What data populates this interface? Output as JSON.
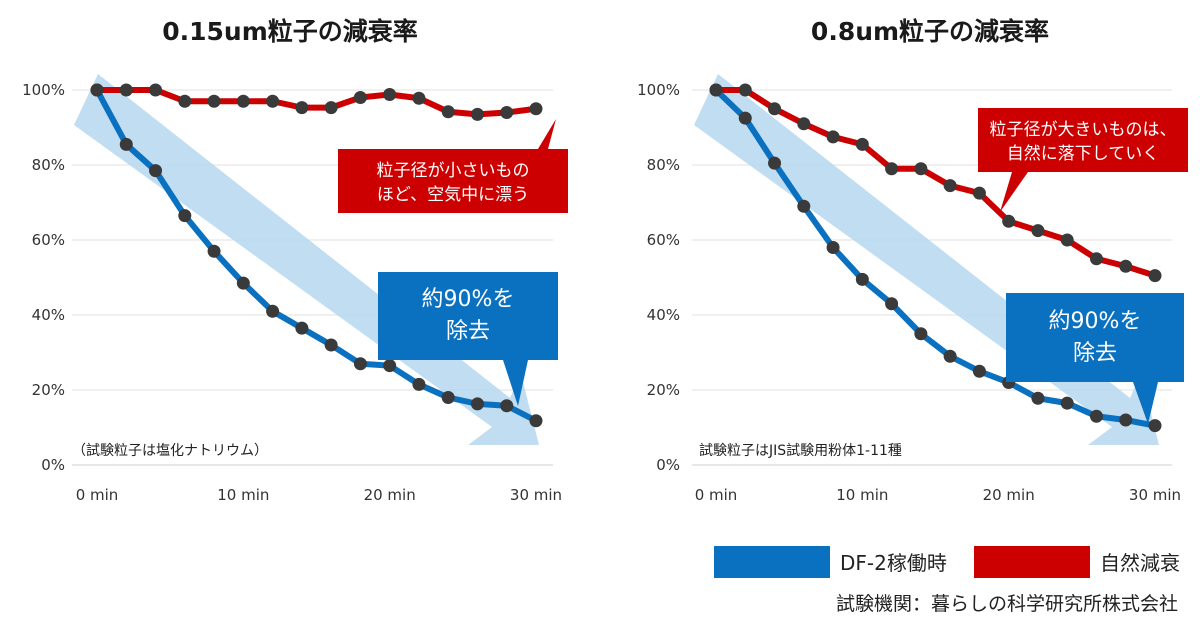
{
  "chart_data": [
    {
      "type": "line",
      "title": "0.15um粒子の減衰率",
      "x": [
        0,
        2,
        4,
        6,
        8,
        10,
        12,
        14,
        16,
        18,
        20,
        22,
        24,
        26,
        28,
        30
      ],
      "x_ticks": [
        "0 min",
        "10 min",
        "20 min",
        "30 min"
      ],
      "x_tick_values": [
        0,
        10,
        20,
        30
      ],
      "y_ticks": [
        "0%",
        "20%",
        "40%",
        "60%",
        "80%",
        "100%"
      ],
      "y_tick_values": [
        0,
        20,
        40,
        60,
        80,
        100
      ],
      "ylim": [
        0,
        100
      ],
      "xlim": [
        0,
        30
      ],
      "grid": true,
      "series": [
        {
          "name": "DF-2稼働時",
          "color": "#0a70c0",
          "values": [
            100,
            85.5,
            78.5,
            66.5,
            57,
            48.5,
            41,
            36.5,
            32,
            27,
            26.5,
            21.5,
            18,
            16.3,
            15.8,
            11.8
          ]
        },
        {
          "name": "自然減衰",
          "color": "#cc0000",
          "values": [
            100,
            100,
            100,
            97,
            97,
            97,
            97,
            95.3,
            95.3,
            98,
            98.8,
            97.8,
            94.2,
            93.5,
            94,
            95
          ]
        }
      ],
      "callout_natural": [
        "粒子径が小さいもの",
        "ほど、空気中に漂う"
      ],
      "callout_df": [
        "約90%を",
        "除去"
      ],
      "note": "（試験粒子は塩化ナトリウム）"
    },
    {
      "type": "line",
      "title": "0.8um粒子の減衰率",
      "x": [
        0,
        2,
        4,
        6,
        8,
        10,
        12,
        14,
        16,
        18,
        20,
        22,
        24,
        26,
        28,
        30
      ],
      "x_ticks": [
        "0 min",
        "10 min",
        "20 min",
        "30 min"
      ],
      "x_tick_values": [
        0,
        10,
        20,
        30
      ],
      "y_ticks": [
        "0%",
        "20%",
        "40%",
        "60%",
        "80%",
        "100%"
      ],
      "y_tick_values": [
        0,
        20,
        40,
        60,
        80,
        100
      ],
      "ylim": [
        0,
        100
      ],
      "xlim": [
        0,
        30
      ],
      "grid": true,
      "series": [
        {
          "name": "DF-2稼働時",
          "color": "#0a70c0",
          "values": [
            100,
            92.5,
            80.5,
            69,
            58,
            49.5,
            43,
            35,
            29,
            25,
            22,
            17.8,
            16.5,
            13,
            12,
            10.5
          ]
        },
        {
          "name": "自然減衰",
          "color": "#cc0000",
          "values": [
            100,
            100,
            95,
            91,
            87.5,
            85.5,
            79,
            79,
            74.5,
            72.5,
            65,
            62.5,
            60,
            55,
            53,
            50.5
          ]
        }
      ],
      "callout_natural": [
        "粒子径が大きいものは、",
        "自然に落下していく"
      ],
      "callout_df": [
        "約90%を",
        "除去"
      ],
      "note": "試験粒子はJIS試験用粉体1-11種"
    }
  ],
  "legend": {
    "items": [
      {
        "label": "DF-2稼働時",
        "color": "#0a70c0"
      },
      {
        "label": "自然減衰",
        "color": "#cc0000"
      }
    ]
  },
  "credit": "試験機関：暮らしの科学研究所株式会社",
  "colors": {
    "df_blue": "#0a70c0",
    "natural_red": "#cc0000",
    "arrow_light_blue": "#b9d9f1",
    "marker": "#3a3a3a",
    "grid": "#e0e0e0"
  }
}
